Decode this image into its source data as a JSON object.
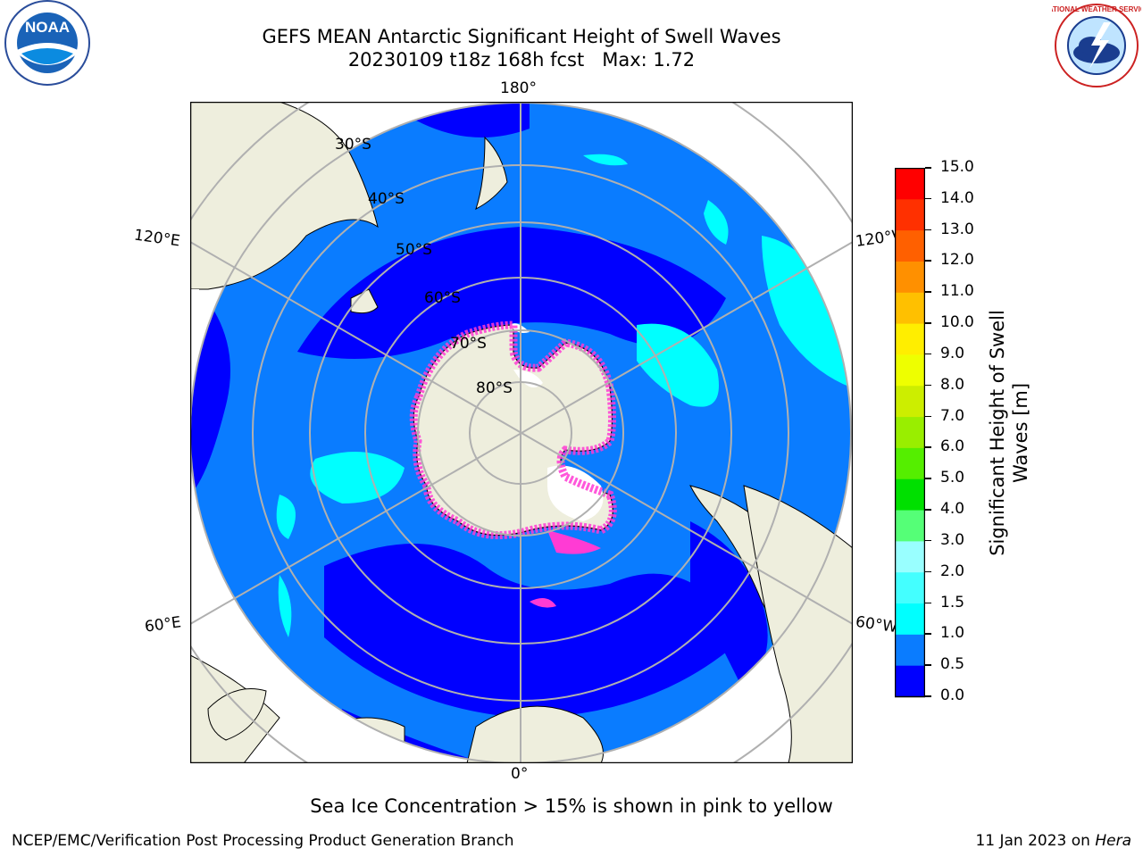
{
  "header": {
    "title_line1": "GEFS MEAN Antarctic Significant Height of Swell Waves",
    "title_line2": "20230109 t18z 168h fcst   Max: 1.72"
  },
  "logos": {
    "left": "NOAA",
    "right": "NATIONAL WEATHER SERVICE"
  },
  "map": {
    "projection": "south-polar-stereographic",
    "latitude_labels": [
      "30°S",
      "40°S",
      "50°S",
      "60°S",
      "70°S",
      "80°S"
    ],
    "longitude_labels": {
      "top": "180°",
      "bottom": "0°",
      "upper_left": "120°E",
      "lower_left": "60°E",
      "upper_right": "120°W",
      "lower_right": "60°W"
    },
    "colors": {
      "ocean_low": "#0000ff",
      "ocean_mid": "#0a7cff",
      "ocean_high": "#00ffff",
      "land": "#eeeedd",
      "ice_pink": "#ff3bd4",
      "grid": "#b0b0b0"
    }
  },
  "colorbar": {
    "label_line1": "Significant Height of Swell",
    "label_line2": "Waves [m]",
    "ticks": [
      "0.0",
      "0.5",
      "1.0",
      "1.5",
      "2.0",
      "3.0",
      "4.0",
      "5.0",
      "6.0",
      "7.0",
      "8.0",
      "9.0",
      "10.0",
      "11.0",
      "12.0",
      "13.0",
      "14.0",
      "15.0"
    ],
    "colors": [
      "#0000ff",
      "#0a7cff",
      "#00ffff",
      "#44ffff",
      "#99ffff",
      "#55ff77",
      "#00e000",
      "#55ee00",
      "#99ee00",
      "#ccee00",
      "#eeff00",
      "#ffee00",
      "#ffc000",
      "#ff9000",
      "#ff6000",
      "#ff3000",
      "#ff0000"
    ]
  },
  "footer": {
    "caption": "Sea Ice Concentration > 15% is shown in pink to yellow",
    "credit": "NCEP/EMC/Verification Post Processing Product Generation Branch",
    "date": "11 Jan 2023 on ",
    "host": "Hera"
  }
}
